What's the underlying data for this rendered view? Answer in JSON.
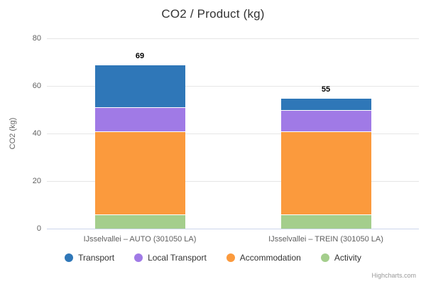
{
  "chart": {
    "credit": "Highcharts.com"
  },
  "chart_data": {
    "type": "bar",
    "stacked": true,
    "title": "CO2 / Product (kg)",
    "ylabel": "CO2 (kg)",
    "xlabel": "",
    "ylim": [
      0,
      80
    ],
    "yticks": [
      0,
      20,
      40,
      60,
      80
    ],
    "grid": true,
    "legend_position": "bottom",
    "categories": [
      "IJsselvallei – AUTO (301050 LA)",
      "IJsselvallei – TREIN (301050 LA)"
    ],
    "series": [
      {
        "name": "Transport",
        "color": "#2f77b8",
        "values": [
          18,
          5
        ]
      },
      {
        "name": "Local Transport",
        "color": "#a07ae6",
        "values": [
          10,
          9
        ]
      },
      {
        "name": "Accommodation",
        "color": "#fb9a3d",
        "values": [
          35,
          35
        ]
      },
      {
        "name": "Activity",
        "color": "#a4ce8c",
        "values": [
          6,
          6
        ]
      }
    ],
    "stack_totals": [
      69,
      55
    ],
    "colors": {
      "grid": "#e6e6e6",
      "axis_line": "#ccd6eb",
      "title_text": "#333333",
      "axis_text": "#606060",
      "stack_label_text": "#000000"
    }
  }
}
